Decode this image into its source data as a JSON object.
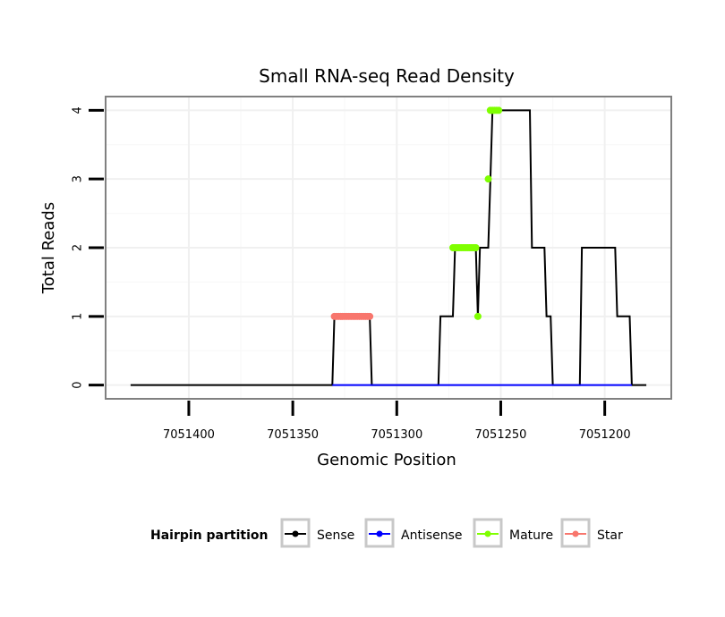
{
  "chart_data": {
    "type": "line",
    "title": "Small RNA-seq Read Density",
    "xlabel": "Genomic Position",
    "ylabel": "Total Reads",
    "x_reversed": true,
    "xlim": [
      7051440,
      7051168
    ],
    "ylim": [
      -0.2,
      4.2
    ],
    "xticks": [
      7051400,
      7051350,
      7051300,
      7051250,
      7051200
    ],
    "xtick_labels": [
      "7051400",
      "7051350",
      "7051300",
      "7051250",
      "7051200"
    ],
    "yticks": [
      0,
      1,
      2,
      3,
      4
    ],
    "ytick_labels": [
      "0",
      "1",
      "2",
      "3",
      "4"
    ],
    "grid": true,
    "legend": {
      "title": "Hairpin partition",
      "position": "bottom",
      "entries": [
        "Sense",
        "Antisense",
        "Mature",
        "Star"
      ]
    },
    "series": [
      {
        "name": "Sense",
        "color": "#000000",
        "style": "line",
        "points": [
          [
            7051428,
            0
          ],
          [
            7051331,
            0
          ],
          [
            7051330,
            1
          ],
          [
            7051313,
            1
          ],
          [
            7051312,
            0
          ],
          [
            7051280,
            0
          ],
          [
            7051279,
            1
          ],
          [
            7051273,
            1
          ],
          [
            7051272,
            2
          ],
          [
            7051262,
            2
          ],
          [
            7051261,
            1
          ],
          [
            7051260,
            2
          ],
          [
            7051256,
            2
          ],
          [
            7051255,
            3
          ],
          [
            7051254,
            4
          ],
          [
            7051236,
            4
          ],
          [
            7051235,
            2
          ],
          [
            7051229,
            2
          ],
          [
            7051228,
            1
          ],
          [
            7051226,
            1
          ],
          [
            7051225,
            0
          ],
          [
            7051212,
            0
          ],
          [
            7051211,
            2
          ],
          [
            7051195,
            2
          ],
          [
            7051194,
            1
          ],
          [
            7051188,
            1
          ],
          [
            7051187,
            0
          ],
          [
            7051180,
            0
          ]
        ]
      },
      {
        "name": "Antisense",
        "color": "#0000FF",
        "style": "line",
        "points": [
          [
            7051331,
            0
          ],
          [
            7051312,
            0
          ],
          [
            7051280,
            0
          ],
          [
            7051225,
            0
          ],
          [
            7051212,
            0
          ],
          [
            7051187,
            0
          ]
        ]
      },
      {
        "name": "Mature",
        "color": "#7FFF00",
        "style": "points",
        "points": [
          [
            7051273,
            2
          ],
          [
            7051272,
            2
          ],
          [
            7051271,
            2
          ],
          [
            7051270,
            2
          ],
          [
            7051269,
            2
          ],
          [
            7051268,
            2
          ],
          [
            7051267,
            2
          ],
          [
            7051266,
            2
          ],
          [
            7051265,
            2
          ],
          [
            7051264,
            2
          ],
          [
            7051263,
            2
          ],
          [
            7051262,
            2
          ],
          [
            7051261,
            1
          ],
          [
            7051256,
            3
          ],
          [
            7051255,
            4
          ],
          [
            7051254,
            4
          ],
          [
            7051253,
            4
          ],
          [
            7051252,
            4
          ],
          [
            7051251,
            4
          ]
        ]
      },
      {
        "name": "Star",
        "color": "#F8766D",
        "style": "points",
        "points": [
          [
            7051330,
            1
          ],
          [
            7051329,
            1
          ],
          [
            7051328,
            1
          ],
          [
            7051327,
            1
          ],
          [
            7051326,
            1
          ],
          [
            7051325,
            1
          ],
          [
            7051324,
            1
          ],
          [
            7051323,
            1
          ],
          [
            7051322,
            1
          ],
          [
            7051321,
            1
          ],
          [
            7051320,
            1
          ],
          [
            7051319,
            1
          ],
          [
            7051318,
            1
          ],
          [
            7051317,
            1
          ],
          [
            7051316,
            1
          ],
          [
            7051315,
            1
          ],
          [
            7051314,
            1
          ],
          [
            7051313,
            1
          ]
        ]
      }
    ]
  }
}
